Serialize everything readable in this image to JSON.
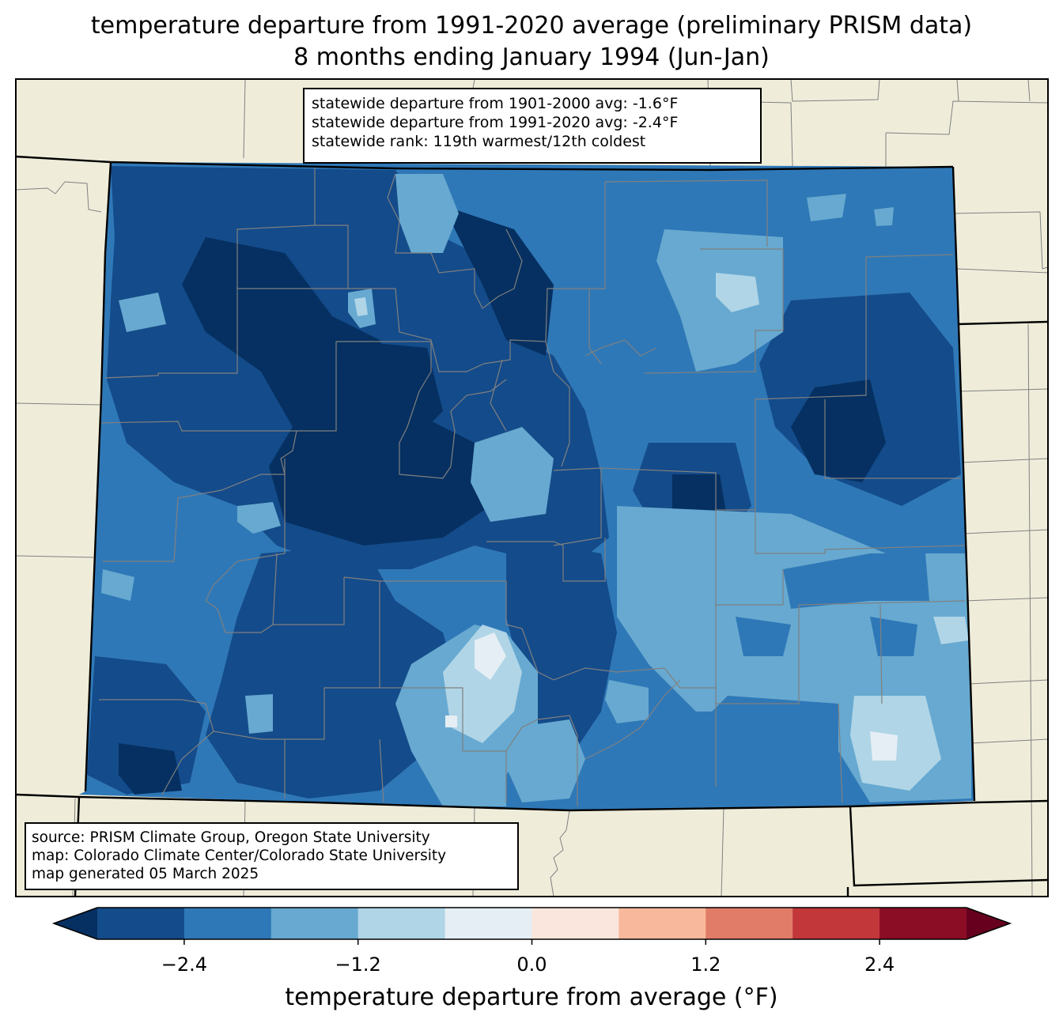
{
  "title_line1": "temperature departure from 1991-2020 average (preliminary PRISM data)",
  "title_line2": "8 months ending January 1994 (Jun-Jan)",
  "stats": {
    "line1": "statewide departure from 1901-2000 avg: -1.6°F",
    "line2": "statewide departure from 1991-2020 avg: -2.4°F",
    "line3": "statewide rank: 119th warmest/12th coldest"
  },
  "source": {
    "line1": "source: PRISM Climate Group, Oregon State University",
    "line2": "map: Colorado Climate Center/Colorado State University",
    "line3": "map generated 05 March 2025"
  },
  "colorbar": {
    "label": "temperature departure from average (°F)",
    "ticks": [
      {
        "value": -2.4,
        "text": "−2.4"
      },
      {
        "value": -1.2,
        "text": "−1.2"
      },
      {
        "value": 0.0,
        "text": "0.0"
      },
      {
        "value": 1.2,
        "text": "1.2"
      },
      {
        "value": 2.4,
        "text": "2.4"
      }
    ],
    "bins": [
      -3.0,
      -2.4,
      -1.8,
      -1.2,
      -0.6,
      0.0,
      0.6,
      1.2,
      1.8,
      2.4,
      3.0
    ],
    "under_color": "#053061",
    "over_color": "#67001f",
    "colors": [
      "#144b8a",
      "#2f78b7",
      "#67a9d0",
      "#b0d5e7",
      "#e4eef4",
      "#fae6dc",
      "#f8b89b",
      "#e07c67",
      "#c1373a",
      "#8a0c25"
    ]
  },
  "colors": {
    "land": "#efedda",
    "ocean_border": "#000000",
    "county_lines": "#808080"
  }
}
